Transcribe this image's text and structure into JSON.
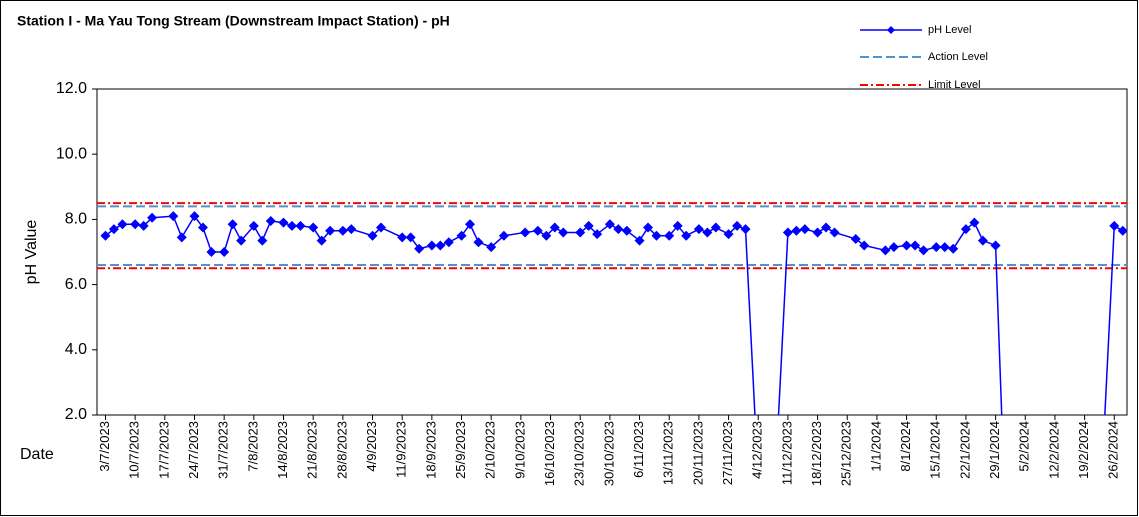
{
  "chart_data": {
    "type": "line",
    "title": "Station I - Ma Yau Tong Stream (Downstream Impact Station) - pH",
    "y_label": "pH Value",
    "x_label": "Date",
    "x": [
      "3/7/2023",
      "5/7/2023",
      "7/7/2023",
      "10/7/2023",
      "12/7/2023",
      "14/7/2023",
      "19/7/2023",
      "21/7/2023",
      "24/7/2023",
      "26/7/2023",
      "28/7/2023",
      "31/7/2023",
      "2/8/2023",
      "4/8/2023",
      "7/8/2023",
      "9/8/2023",
      "11/8/2023",
      "14/8/2023",
      "16/8/2023",
      "18/8/2023",
      "21/8/2023",
      "23/8/2023",
      "25/8/2023",
      "28/8/2023",
      "30/8/2023",
      "4/9/2023",
      "6/9/2023",
      "11/9/2023",
      "13/9/2023",
      "15/9/2023",
      "18/9/2023",
      "20/9/2023",
      "22/9/2023",
      "25/9/2023",
      "27/9/2023",
      "29/9/2023",
      "2/10/2023",
      "5/10/2023",
      "10/10/2023",
      "13/10/2023",
      "15/10/2023",
      "17/10/2023",
      "19/10/2023",
      "23/10/2023",
      "25/10/2023",
      "27/10/2023",
      "30/10/2023",
      "1/11/2023",
      "3/11/2023",
      "6/11/2023",
      "8/11/2023",
      "10/11/2023",
      "13/11/2023",
      "15/11/2023",
      "17/11/2023",
      "20/11/2023",
      "22/11/2023",
      "24/11/2023",
      "27/11/2023",
      "29/11/2023",
      "1/12/2023",
      "4/12/2023",
      "8/12/2023",
      "11/12/2023",
      "13/12/2023",
      "15/12/2023",
      "18/12/2023",
      "20/12/2023",
      "22/12/2023",
      "27/12/2023",
      "29/12/2023",
      "3/1/2024",
      "5/1/2024",
      "8/1/2024",
      "10/1/2024",
      "12/1/2024",
      "15/1/2024",
      "17/1/2024",
      "19/1/2024",
      "22/1/2024",
      "24/1/2024",
      "26/1/2024",
      "29/1/2024",
      "31/1/2024",
      "23/2/2024",
      "26/2/2024",
      "28/2/2024"
    ],
    "series": [
      {
        "name": "pH Level",
        "color": "#0000ff",
        "values": [
          7.5,
          7.7,
          7.85,
          7.85,
          7.8,
          8.05,
          8.1,
          7.45,
          8.1,
          7.75,
          7.0,
          7.0,
          7.85,
          7.35,
          7.8,
          7.35,
          7.95,
          7.9,
          7.8,
          7.8,
          7.75,
          7.35,
          7.65,
          7.65,
          7.7,
          7.5,
          7.75,
          7.45,
          7.45,
          7.1,
          7.2,
          7.2,
          7.3,
          7.5,
          7.85,
          7.3,
          7.15,
          7.5,
          7.6,
          7.65,
          7.5,
          7.75,
          7.6,
          7.6,
          7.8,
          7.55,
          7.85,
          7.7,
          7.65,
          7.35,
          7.75,
          7.5,
          7.5,
          7.8,
          7.5,
          7.7,
          7.6,
          7.75,
          7.55,
          7.8,
          7.7,
          0,
          0,
          7.6,
          7.65,
          7.7,
          7.6,
          7.75,
          7.6,
          7.4,
          7.2,
          7.05,
          7.15,
          7.2,
          7.2,
          7.05,
          7.15,
          7.15,
          7.1,
          7.7,
          7.9,
          7.35,
          7.2,
          0,
          0,
          7.8,
          7.65
        ]
      }
    ],
    "reference_lines": [
      {
        "name": "Action Level",
        "color": "#4f94cd",
        "values": [
          8.4,
          6.6
        ]
      },
      {
        "name": "Limit Level",
        "color": "#ff0000",
        "values": [
          8.5,
          6.5
        ]
      }
    ],
    "xlim": [
      "1/7/2023",
      "29/2/2024"
    ],
    "xticks": [
      "3/7/2023",
      "10/7/2023",
      "17/7/2023",
      "24/7/2023",
      "31/7/2023",
      "7/8/2023",
      "14/8/2023",
      "21/8/2023",
      "28/8/2023",
      "4/9/2023",
      "11/9/2023",
      "18/9/2023",
      "25/9/2023",
      "2/10/2023",
      "9/10/2023",
      "16/10/2023",
      "23/10/2023",
      "30/10/2023",
      "6/11/2023",
      "13/11/2023",
      "20/11/2023",
      "27/11/2023",
      "4/12/2023",
      "11/12/2023",
      "18/12/2023",
      "25/12/2023",
      "1/1/2024",
      "8/1/2024",
      "15/1/2024",
      "22/1/2024",
      "29/1/2024",
      "5/2/2024",
      "12/2/2024",
      "19/2/2024",
      "26/2/2024"
    ],
    "ylim": [
      2,
      12
    ],
    "yticks": [
      {
        "value": 2,
        "label": "2.0"
      },
      {
        "value": 4,
        "label": "4.0"
      },
      {
        "value": 6,
        "label": "6.0"
      },
      {
        "value": 8,
        "label": "8.0"
      },
      {
        "value": 10,
        "label": "10.0"
      },
      {
        "value": 12,
        "label": "12.0"
      }
    ],
    "legend": "top-right"
  }
}
